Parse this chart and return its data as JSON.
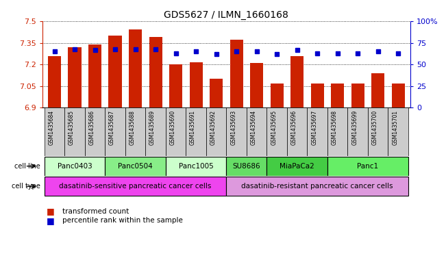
{
  "title": "GDS5627 / ILMN_1660168",
  "samples": [
    "GSM1435684",
    "GSM1435685",
    "GSM1435686",
    "GSM1435687",
    "GSM1435688",
    "GSM1435689",
    "GSM1435690",
    "GSM1435691",
    "GSM1435692",
    "GSM1435693",
    "GSM1435694",
    "GSM1435695",
    "GSM1435696",
    "GSM1435697",
    "GSM1435698",
    "GSM1435699",
    "GSM1435700",
    "GSM1435701"
  ],
  "bar_values": [
    7.26,
    7.32,
    7.34,
    7.4,
    7.445,
    7.39,
    7.2,
    7.215,
    7.1,
    7.375,
    7.21,
    7.07,
    7.26,
    7.07,
    7.07,
    7.07,
    7.14,
    7.07
  ],
  "percentile_values": [
    65,
    68,
    67,
    68,
    68,
    68,
    63,
    65,
    62,
    65,
    65,
    62,
    67,
    63,
    63,
    63,
    65,
    63
  ],
  "ymin": 6.9,
  "ymax": 7.5,
  "yticks": [
    6.9,
    7.05,
    7.2,
    7.35,
    7.5
  ],
  "ytick_labels": [
    "6.9",
    "7.05",
    "7.2",
    "7.35",
    "7.5"
  ],
  "right_yticks": [
    0,
    25,
    50,
    75,
    100
  ],
  "right_ytick_labels": [
    "0",
    "25",
    "50",
    "75",
    "100%"
  ],
  "bar_color": "#cc2200",
  "dot_color": "#0000cc",
  "cell_lines": [
    {
      "label": "Panc0403",
      "start": 0,
      "end": 2,
      "color": "#ccffcc"
    },
    {
      "label": "Panc0504",
      "start": 3,
      "end": 5,
      "color": "#88ee88"
    },
    {
      "label": "Panc1005",
      "start": 6,
      "end": 8,
      "color": "#ccffcc"
    },
    {
      "label": "SU8686",
      "start": 9,
      "end": 10,
      "color": "#66dd66"
    },
    {
      "label": "MiaPaCa2",
      "start": 11,
      "end": 13,
      "color": "#44cc44"
    },
    {
      "label": "Panc1",
      "start": 14,
      "end": 17,
      "color": "#66ee66"
    }
  ],
  "cell_types": [
    {
      "label": "dasatinib-sensitive pancreatic cancer cells",
      "start": 0,
      "end": 8,
      "color": "#ee44ee"
    },
    {
      "label": "dasatinib-resistant pancreatic cancer cells",
      "start": 9,
      "end": 17,
      "color": "#dd99dd"
    }
  ],
  "sample_bg_color": "#cccccc",
  "tick_color_left": "#cc2200",
  "tick_color_right": "#0000cc"
}
